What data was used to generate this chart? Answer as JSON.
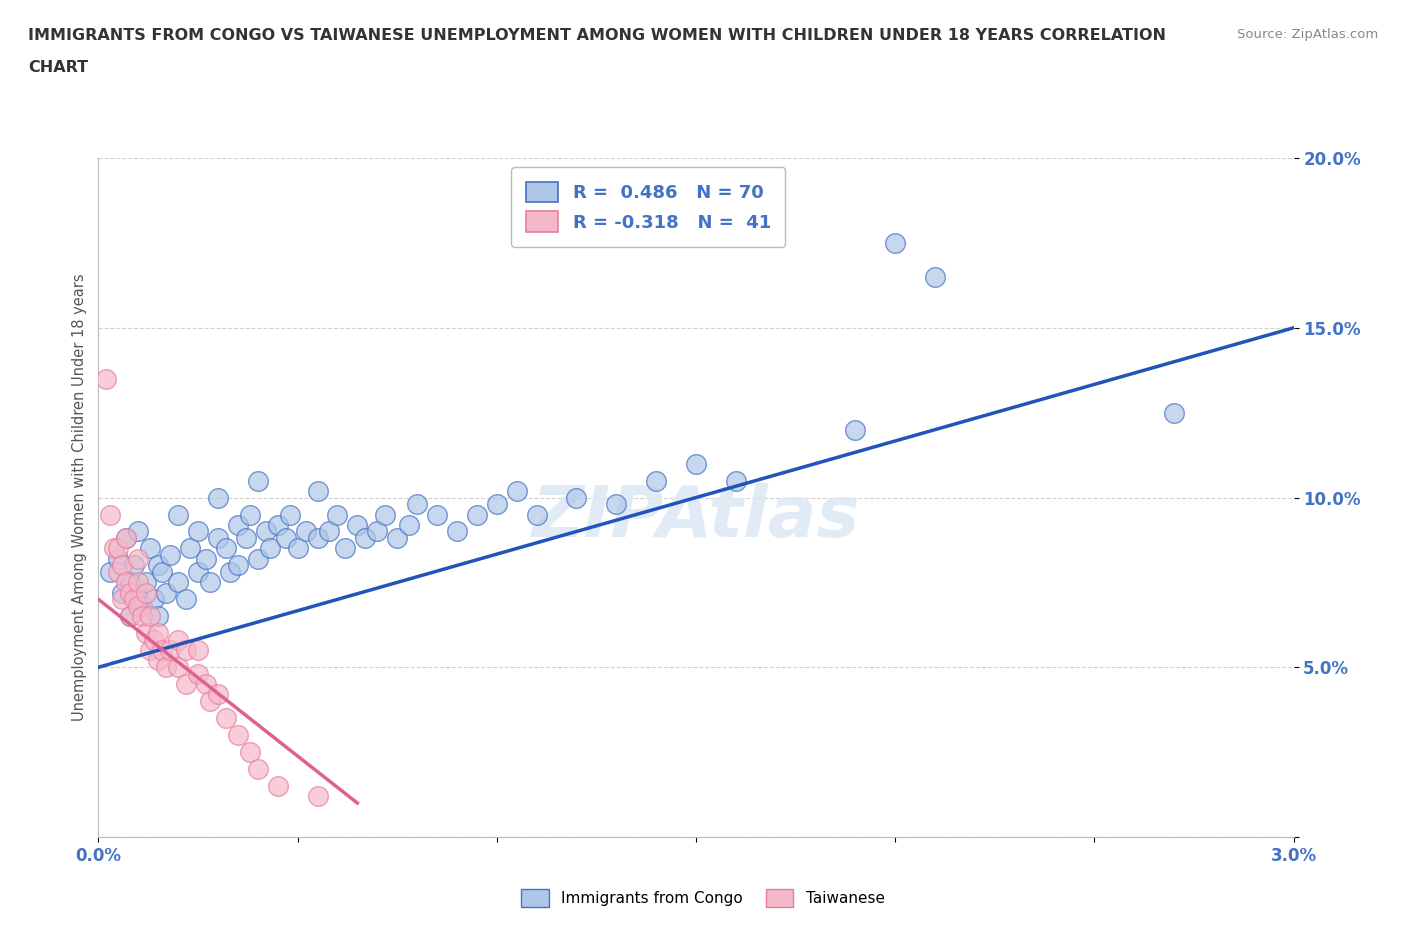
{
  "title_line1": "IMMIGRANTS FROM CONGO VS TAIWANESE UNEMPLOYMENT AMONG WOMEN WITH CHILDREN UNDER 18 YEARS CORRELATION",
  "title_line2": "CHART",
  "source": "Source: ZipAtlas.com",
  "ylabel": "Unemployment Among Women with Children Under 18 years",
  "xlim": [
    0.0,
    3.0
  ],
  "ylim": [
    0.0,
    20.0
  ],
  "xticks": [
    0.0,
    0.5,
    1.0,
    1.5,
    2.0,
    2.5,
    3.0
  ],
  "yticks": [
    0.0,
    5.0,
    10.0,
    15.0,
    20.0
  ],
  "congo_color": "#aec6e8",
  "taiwanese_color": "#f5b8c8",
  "congo_edge_color": "#4472c4",
  "taiwanese_edge_color": "#e87da0",
  "congo_line_color": "#2255bb",
  "taiwanese_line_color": "#e06090",
  "watermark": "ZIPAtlas",
  "legend_r_congo": "R =  0.486",
  "legend_n_congo": "N = 70",
  "legend_r_taiwanese": "R = -0.318",
  "legend_n_taiwanese": "N =  41",
  "legend_text_color": "#4472c4",
  "congo_points": [
    [
      0.03,
      7.8
    ],
    [
      0.05,
      8.2
    ],
    [
      0.06,
      7.2
    ],
    [
      0.07,
      8.8
    ],
    [
      0.08,
      6.5
    ],
    [
      0.08,
      7.5
    ],
    [
      0.09,
      8.0
    ],
    [
      0.1,
      7.0
    ],
    [
      0.1,
      9.0
    ],
    [
      0.11,
      6.8
    ],
    [
      0.12,
      7.5
    ],
    [
      0.13,
      8.5
    ],
    [
      0.14,
      7.0
    ],
    [
      0.15,
      6.5
    ],
    [
      0.15,
      8.0
    ],
    [
      0.16,
      7.8
    ],
    [
      0.17,
      7.2
    ],
    [
      0.18,
      8.3
    ],
    [
      0.2,
      7.5
    ],
    [
      0.2,
      9.5
    ],
    [
      0.22,
      7.0
    ],
    [
      0.23,
      8.5
    ],
    [
      0.25,
      7.8
    ],
    [
      0.25,
      9.0
    ],
    [
      0.27,
      8.2
    ],
    [
      0.28,
      7.5
    ],
    [
      0.3,
      8.8
    ],
    [
      0.3,
      10.0
    ],
    [
      0.32,
      8.5
    ],
    [
      0.33,
      7.8
    ],
    [
      0.35,
      9.2
    ],
    [
      0.35,
      8.0
    ],
    [
      0.37,
      8.8
    ],
    [
      0.38,
      9.5
    ],
    [
      0.4,
      8.2
    ],
    [
      0.4,
      10.5
    ],
    [
      0.42,
      9.0
    ],
    [
      0.43,
      8.5
    ],
    [
      0.45,
      9.2
    ],
    [
      0.47,
      8.8
    ],
    [
      0.48,
      9.5
    ],
    [
      0.5,
      8.5
    ],
    [
      0.52,
      9.0
    ],
    [
      0.55,
      8.8
    ],
    [
      0.55,
      10.2
    ],
    [
      0.58,
      9.0
    ],
    [
      0.6,
      9.5
    ],
    [
      0.62,
      8.5
    ],
    [
      0.65,
      9.2
    ],
    [
      0.67,
      8.8
    ],
    [
      0.7,
      9.0
    ],
    [
      0.72,
      9.5
    ],
    [
      0.75,
      8.8
    ],
    [
      0.78,
      9.2
    ],
    [
      0.8,
      9.8
    ],
    [
      0.85,
      9.5
    ],
    [
      0.9,
      9.0
    ],
    [
      0.95,
      9.5
    ],
    [
      1.0,
      9.8
    ],
    [
      1.05,
      10.2
    ],
    [
      1.1,
      9.5
    ],
    [
      1.2,
      10.0
    ],
    [
      1.3,
      9.8
    ],
    [
      1.4,
      10.5
    ],
    [
      1.5,
      11.0
    ],
    [
      1.6,
      10.5
    ],
    [
      1.9,
      12.0
    ],
    [
      2.0,
      17.5
    ],
    [
      2.1,
      16.5
    ],
    [
      2.7,
      12.5
    ]
  ],
  "taiwanese_points": [
    [
      0.02,
      13.5
    ],
    [
      0.03,
      9.5
    ],
    [
      0.04,
      8.5
    ],
    [
      0.05,
      7.8
    ],
    [
      0.05,
      8.5
    ],
    [
      0.06,
      7.0
    ],
    [
      0.06,
      8.0
    ],
    [
      0.07,
      7.5
    ],
    [
      0.07,
      8.8
    ],
    [
      0.08,
      7.2
    ],
    [
      0.08,
      6.5
    ],
    [
      0.09,
      7.0
    ],
    [
      0.1,
      8.2
    ],
    [
      0.1,
      6.8
    ],
    [
      0.1,
      7.5
    ],
    [
      0.11,
      6.5
    ],
    [
      0.12,
      7.2
    ],
    [
      0.12,
      6.0
    ],
    [
      0.13,
      5.5
    ],
    [
      0.13,
      6.5
    ],
    [
      0.14,
      5.8
    ],
    [
      0.15,
      5.2
    ],
    [
      0.15,
      6.0
    ],
    [
      0.16,
      5.5
    ],
    [
      0.17,
      5.0
    ],
    [
      0.18,
      5.5
    ],
    [
      0.2,
      5.0
    ],
    [
      0.2,
      5.8
    ],
    [
      0.22,
      4.5
    ],
    [
      0.22,
      5.5
    ],
    [
      0.25,
      4.8
    ],
    [
      0.25,
      5.5
    ],
    [
      0.27,
      4.5
    ],
    [
      0.28,
      4.0
    ],
    [
      0.3,
      4.2
    ],
    [
      0.32,
      3.5
    ],
    [
      0.35,
      3.0
    ],
    [
      0.38,
      2.5
    ],
    [
      0.4,
      2.0
    ],
    [
      0.45,
      1.5
    ],
    [
      0.55,
      1.2
    ]
  ],
  "congo_trend_x": [
    0.0,
    3.0
  ],
  "congo_trend_y": [
    5.0,
    15.0
  ],
  "taiwanese_trend_x": [
    0.0,
    0.65
  ],
  "taiwanese_trend_y": [
    7.0,
    1.0
  ],
  "background_color": "#ffffff",
  "grid_color": "#cccccc"
}
